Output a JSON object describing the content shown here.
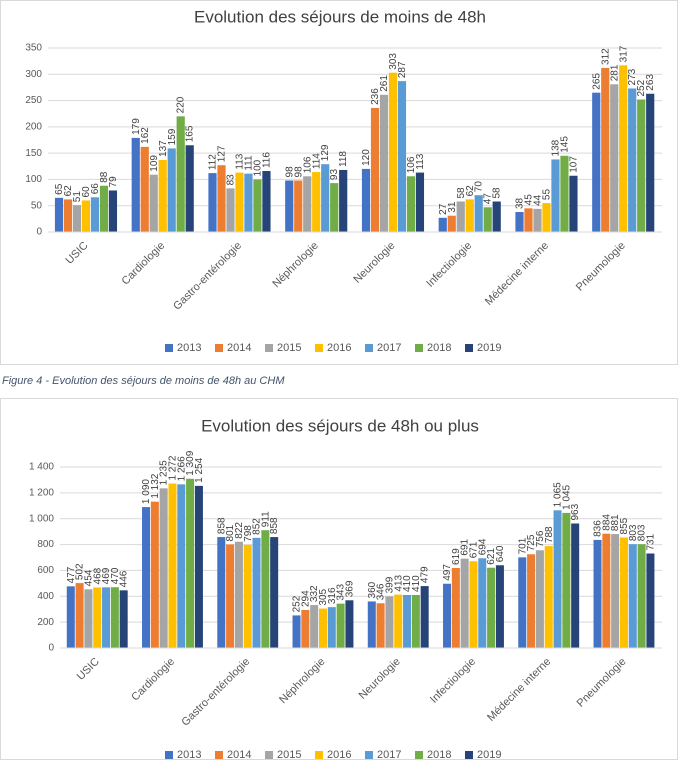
{
  "caption": "Figure 4 - Evolution des séjours de moins de 48h au CHM",
  "chart_data": [
    {
      "type": "bar",
      "title": "Evolution des séjours de moins de 48h",
      "categories": [
        "USIC",
        "Cardiologie",
        "Gastro-entérologie",
        "Néphrologie",
        "Neurologie",
        "Infectiologie",
        "Médecine interne",
        "Pneumologie"
      ],
      "series": [
        {
          "name": "2013",
          "color": "#4472c4",
          "values": [
            65,
            179,
            112,
            98,
            120,
            27,
            38,
            265
          ]
        },
        {
          "name": "2014",
          "color": "#ed7d31",
          "values": [
            62,
            162,
            127,
            98,
            236,
            31,
            45,
            312
          ]
        },
        {
          "name": "2015",
          "color": "#a5a5a5",
          "values": [
            51,
            109,
            83,
            106,
            261,
            58,
            44,
            281
          ]
        },
        {
          "name": "2016",
          "color": "#ffc000",
          "values": [
            60,
            137,
            113,
            114,
            303,
            62,
            55,
            317
          ]
        },
        {
          "name": "2017",
          "color": "#5b9bd5",
          "values": [
            66,
            159,
            111,
            129,
            287,
            70,
            138,
            273
          ]
        },
        {
          "name": "2018",
          "color": "#70ad47",
          "values": [
            88,
            220,
            100,
            93,
            106,
            47,
            145,
            252
          ]
        },
        {
          "name": "2019",
          "color": "#264478",
          "values": [
            79,
            165,
            116,
            118,
            113,
            58,
            107,
            263
          ]
        }
      ],
      "ylim": [
        0,
        350
      ],
      "yticks": [
        0,
        50,
        100,
        150,
        200,
        250,
        300,
        350
      ],
      "grid": true,
      "legend": "bottom"
    },
    {
      "type": "bar",
      "title": "Evolution des séjours de 48h ou plus",
      "categories": [
        "USIC",
        "Cardiologie",
        "Gastro-entérologie",
        "Néphrologie",
        "Neurologie",
        "Infectiologie",
        "Médecine interne",
        "Pneumologie"
      ],
      "series": [
        {
          "name": "2013",
          "color": "#4472c4",
          "values": [
            477,
            1090,
            858,
            252,
            360,
            497,
            701,
            836
          ],
          "value_labels": [
            "477",
            "1 090",
            "858",
            "252",
            "360",
            "497",
            "701",
            "836"
          ]
        },
        {
          "name": "2014",
          "color": "#ed7d31",
          "values": [
            502,
            1132,
            801,
            294,
            346,
            619,
            725,
            884
          ],
          "value_labels": [
            "502",
            "1 132",
            "801",
            "294",
            "346",
            "619",
            "725",
            "884"
          ]
        },
        {
          "name": "2015",
          "color": "#a5a5a5",
          "values": [
            454,
            1235,
            822,
            332,
            399,
            691,
            756,
            881
          ],
          "value_labels": [
            "454",
            "1 235",
            "822",
            "332",
            "399",
            "691",
            "756",
            "881"
          ]
        },
        {
          "name": "2016",
          "color": "#ffc000",
          "values": [
            468,
            1272,
            798,
            305,
            413,
            671,
            788,
            855
          ],
          "value_labels": [
            "468",
            "1 272",
            "798",
            "305",
            "413",
            "671",
            "788",
            "855"
          ]
        },
        {
          "name": "2017",
          "color": "#5b9bd5",
          "values": [
            469,
            1266,
            852,
            316,
            410,
            694,
            1065,
            803
          ],
          "value_labels": [
            "469",
            "1 266",
            "852",
            "316",
            "410",
            "694",
            "1 065",
            "803"
          ]
        },
        {
          "name": "2018",
          "color": "#70ad47",
          "values": [
            470,
            1309,
            911,
            343,
            410,
            621,
            1045,
            803
          ],
          "value_labels": [
            "470",
            "1 309",
            "911",
            "343",
            "410",
            "621",
            "1 045",
            "803"
          ]
        },
        {
          "name": "2019",
          "color": "#264478",
          "values": [
            446,
            1254,
            858,
            369,
            479,
            640,
            963,
            731
          ],
          "value_labels": [
            "446",
            "1 254",
            "858",
            "369",
            "479",
            "640",
            "963",
            "731"
          ]
        }
      ],
      "ylim": [
        0,
        1400
      ],
      "yticks": [
        0,
        200,
        400,
        600,
        800,
        {
          "value": 1000,
          "label": "1 000"
        },
        {
          "value": 1200,
          "label": "1 200"
        },
        {
          "value": 1400,
          "label": "1 400"
        }
      ],
      "grid": true,
      "legend": "bottom"
    }
  ]
}
